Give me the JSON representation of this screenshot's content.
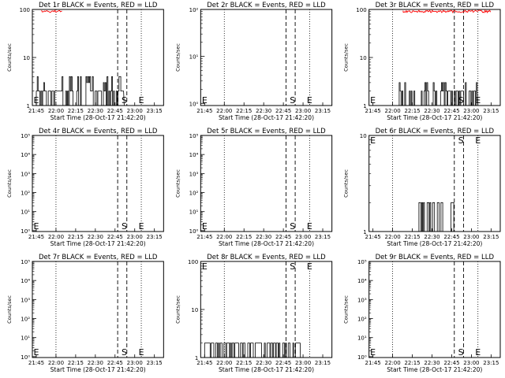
{
  "chart_data": [
    {
      "type": "line",
      "title": "Det 1r BLACK = Events, RED = LLD",
      "xlabel": "Start Time (28-Oct-17 21:42:20)",
      "ylabel": "Counts/sec",
      "yscale": "log",
      "ylim": [
        1,
        100
      ],
      "y_tick_labels": [
        "1",
        "10",
        "100"
      ],
      "x_range": [
        "21:42",
        "23:22"
      ],
      "x_tick_labels": [
        "21:45",
        "22:00",
        "22:15",
        "22:30",
        "22:45",
        "23:00",
        "23:15"
      ],
      "markers": {
        "S_label": "S",
        "E_label": "E",
        "E_left": "21:45",
        "E_right": "23:05",
        "S_at": "22:52"
      },
      "dotted_lines": [
        "22:00",
        "23:05"
      ],
      "dashed_lines": [
        "22:47",
        "22:54"
      ],
      "series": [
        {
          "name": "Events",
          "color": "#000000",
          "activity": [
            "21:45",
            "22:52"
          ],
          "baseline": 1,
          "levels": [
            2,
            2,
            3,
            2,
            2,
            4,
            2,
            2
          ],
          "peak": 4
        },
        {
          "name": "LLD",
          "color": "#ff0000",
          "activity": [
            "21:49",
            "22:05"
          ],
          "baseline": 100,
          "levels": [
            100
          ]
        }
      ]
    },
    {
      "type": "line",
      "title": "Det 2r BLACK = Events, RED = LLD",
      "xlabel": "Start Time (28-Oct-17 21:42:20)",
      "ylabel": "Counts/sec",
      "yscale": "log",
      "ylim": [
        0.9,
        100
      ],
      "y_tick_labels": [
        "10⁰",
        "10¹",
        "10²"
      ],
      "x_range": [
        "21:42",
        "23:22"
      ],
      "x_tick_labels": [
        "21:45",
        "22:00",
        "22:15",
        "22:30",
        "22:45",
        "23:00",
        "23:15"
      ],
      "markers": {
        "S_label": "S",
        "E_label": "E",
        "E_left": "21:45",
        "E_right": "23:05",
        "S_at": "22:52"
      },
      "dotted_lines": [
        "22:00",
        "23:05"
      ],
      "dashed_lines": [
        "22:47",
        "22:54"
      ],
      "series": []
    },
    {
      "type": "line",
      "title": "Det 3r BLACK = Events, RED = LLD",
      "xlabel": "Start Time (28-Oct-17 21:42:20)",
      "ylabel": "Counts/sec",
      "yscale": "log",
      "ylim": [
        1,
        100
      ],
      "y_tick_labels": [
        "1",
        "10",
        "100"
      ],
      "x_range": [
        "21:42",
        "23:22"
      ],
      "x_tick_labels": [
        "21:45",
        "22:00",
        "22:15",
        "22:30",
        "22:45",
        "23:00",
        "23:15"
      ],
      "markers": {
        "S_label": "S",
        "E_label": "E",
        "E_left": "21:45",
        "E_right": "23:05",
        "S_at": "22:52"
      },
      "dotted_lines": [
        "22:00",
        "23:05"
      ],
      "dashed_lines": [
        "22:47",
        "22:54"
      ],
      "series": [
        {
          "name": "Events",
          "color": "#000000",
          "activity": [
            "22:05",
            "23:05"
          ],
          "baseline": 1,
          "levels": [
            2,
            1,
            2,
            2,
            2,
            3,
            1,
            2
          ],
          "peak": 3
        },
        {
          "name": "LLD",
          "color": "#ff0000",
          "activity": [
            "22:08",
            "23:15"
          ],
          "baseline": 100,
          "levels": [
            100
          ]
        }
      ]
    },
    {
      "type": "line",
      "title": "Det 4r BLACK = Events, RED = LLD",
      "xlabel": "Start Time (28-Oct-17 21:42:20)",
      "ylabel": "Counts/sec",
      "yscale": "log",
      "ylim": [
        0.9,
        100000
      ],
      "y_tick_labels": [
        "10⁰",
        "10¹",
        "10²",
        "10³",
        "10⁴",
        "10⁵"
      ],
      "x_range": [
        "21:42",
        "23:22"
      ],
      "x_tick_labels": [
        "21:45",
        "22:00",
        "22:15",
        "22:30",
        "22:45",
        "23:00",
        "23:15"
      ],
      "markers": {
        "S_label": "S",
        "E_label": "E",
        "E_left": "21:45",
        "E_right": "23:05",
        "S_at": "22:52"
      },
      "dotted_lines": [
        "22:00",
        "23:05"
      ],
      "dashed_lines": [
        "22:47",
        "22:54"
      ],
      "series": []
    },
    {
      "type": "line",
      "title": "Det 5r BLACK = Events, RED = LLD",
      "xlabel": "Start Time (28-Oct-17 21:42:20)",
      "ylabel": "Counts/sec",
      "yscale": "log",
      "ylim": [
        0.9,
        100000
      ],
      "y_tick_labels": [
        "10⁰",
        "10¹",
        "10²",
        "10³",
        "10⁴",
        "10⁵"
      ],
      "x_range": [
        "21:42",
        "23:22"
      ],
      "x_tick_labels": [
        "21:45",
        "22:00",
        "22:15",
        "22:30",
        "22:45",
        "23:00",
        "23:15"
      ],
      "markers": {
        "S_label": "S",
        "E_label": "E",
        "E_left": "21:45",
        "E_right": "23:05",
        "S_at": "22:52"
      },
      "dotted_lines": [
        "22:00",
        "23:05"
      ],
      "dashed_lines": [
        "22:47",
        "22:54"
      ],
      "series": []
    },
    {
      "type": "line",
      "title": "Det 6r BLACK = Events, RED = LLD",
      "xlabel": "Start Time (28-Oct-17 21:42:20)",
      "ylabel": "Counts/sec",
      "yscale": "log",
      "ylim": [
        1,
        10
      ],
      "y_tick_labels": [
        "1",
        "10"
      ],
      "x_range": [
        "21:42",
        "23:22"
      ],
      "x_tick_labels": [
        "21:45",
        "22:00",
        "22:15",
        "22:30",
        "22:45",
        "23:00",
        "23:15"
      ],
      "markers": {
        "S_label": "S",
        "E_label": "E",
        "E_left": "21:45",
        "E_right": "23:05",
        "S_at": "22:52"
      },
      "dotted_lines": [
        "22:00",
        "23:05"
      ],
      "dashed_lines": [
        "22:47",
        "22:54"
      ],
      "series": [
        {
          "name": "Events",
          "color": "#000000",
          "activity": [
            "22:20",
            "22:48"
          ],
          "baseline": 1,
          "levels": [
            2,
            1,
            2,
            1,
            2,
            1
          ],
          "peak": 2
        }
      ]
    },
    {
      "type": "line",
      "title": "Det 7r BLACK = Events, RED = LLD",
      "xlabel": "Start Time (28-Oct-17 21:42:20)",
      "ylabel": "Counts/sec",
      "yscale": "log",
      "ylim": [
        0.9,
        100000
      ],
      "y_tick_labels": [
        "10⁰",
        "10¹",
        "10²",
        "10³",
        "10⁴",
        "10⁵"
      ],
      "x_range": [
        "21:42",
        "23:22"
      ],
      "x_tick_labels": [
        "21:45",
        "22:00",
        "22:15",
        "22:30",
        "22:45",
        "23:00",
        "23:15"
      ],
      "markers": {
        "S_label": "S",
        "E_label": "E",
        "E_left": "21:45",
        "E_right": "23:05",
        "S_at": "22:52"
      },
      "dotted_lines": [
        "22:00",
        "23:05"
      ],
      "dashed_lines": [
        "22:47",
        "22:54"
      ],
      "series": []
    },
    {
      "type": "line",
      "title": "Det 8r BLACK = Events, RED = LLD",
      "xlabel": "Start Time (28-Oct-17 21:42:20)",
      "ylabel": "Counts/sec",
      "yscale": "log",
      "ylim": [
        1,
        100
      ],
      "y_tick_labels": [
        "1",
        "10",
        "100"
      ],
      "x_range": [
        "21:42",
        "23:22"
      ],
      "x_tick_labels": [
        "21:45",
        "22:00",
        "22:15",
        "22:30",
        "22:45",
        "23:00",
        "23:15"
      ],
      "markers": {
        "S_label": "S",
        "E_label": "E",
        "E_left": "21:45",
        "E_right": "23:05",
        "S_at": "22:52"
      },
      "dotted_lines": [
        "22:00",
        "23:05"
      ],
      "dashed_lines": [
        "22:47",
        "22:54"
      ],
      "series": [
        {
          "name": "Events",
          "color": "#000000",
          "activity": [
            "21:45",
            "22:58"
          ],
          "baseline": 1,
          "levels": [
            2,
            2,
            2,
            1,
            2,
            2,
            2,
            2
          ],
          "peak": 2
        }
      ]
    },
    {
      "type": "line",
      "title": "Det 9r BLACK = Events, RED = LLD",
      "xlabel": "Start Time (28-Oct-17 21:42:20)",
      "ylabel": "Counts/sec",
      "yscale": "log",
      "ylim": [
        0.9,
        100000
      ],
      "y_tick_labels": [
        "10⁰",
        "10¹",
        "10²",
        "10³",
        "10⁴",
        "10⁵"
      ],
      "x_range": [
        "21:42",
        "23:22"
      ],
      "x_tick_labels": [
        "21:45",
        "22:00",
        "22:15",
        "22:30",
        "22:45",
        "23:00",
        "23:15"
      ],
      "markers": {
        "S_label": "S",
        "E_label": "E",
        "E_left": "21:45",
        "E_right": "23:05",
        "S_at": "22:52"
      },
      "dotted_lines": [
        "22:00",
        "23:05"
      ],
      "dashed_lines": [
        "22:47",
        "22:54"
      ],
      "series": []
    }
  ]
}
